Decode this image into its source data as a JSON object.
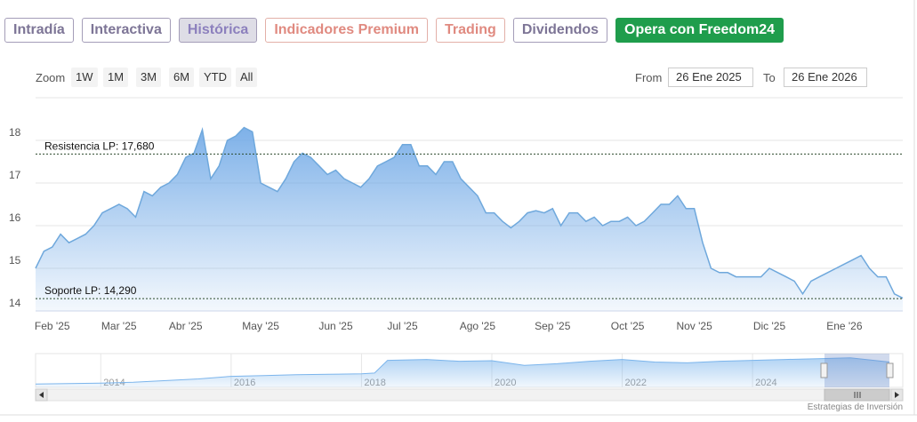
{
  "tabs": [
    "Intradía",
    "Interactiva",
    "Histórica",
    "Indicadores Premium",
    "Trading",
    "Dividendos",
    "Opera con Freedom24"
  ],
  "range_selector": {
    "zoom_label": "Zoom",
    "buttons": [
      "1W",
      "1M",
      "3M",
      "6M",
      "YTD",
      "All"
    ],
    "from_label": "From",
    "from": "26 Ene 2025",
    "to_label": "To",
    "to": "26 Ene 2026"
  },
  "chart_data": {
    "type": "area",
    "categories": [
      null,
      null,
      "Feb '25",
      null,
      null,
      null,
      null,
      null,
      null,
      null,
      "Mar '25",
      null,
      null,
      null,
      null,
      null,
      null,
      null,
      "Abr '25",
      null,
      null,
      null,
      null,
      null,
      null,
      null,
      null,
      "May '25",
      null,
      null,
      null,
      null,
      null,
      null,
      null,
      null,
      "Jun '25",
      null,
      null,
      null,
      null,
      null,
      null,
      null,
      "Jul '25",
      null,
      null,
      null,
      null,
      null,
      null,
      null,
      null,
      "Ago '25",
      null,
      null,
      null,
      null,
      null,
      null,
      null,
      null,
      "Sep '25",
      null,
      null,
      null,
      null,
      null,
      null,
      null,
      null,
      "Oct '25",
      null,
      null,
      null,
      null,
      null,
      null,
      null,
      "Nov '25",
      null,
      null,
      null,
      null,
      null,
      null,
      null,
      null,
      "Dic '25",
      null,
      null,
      null,
      null,
      null,
      null,
      null,
      null,
      "Ene '26",
      null,
      null,
      null,
      null,
      null,
      null,
      null
    ],
    "series": [
      {
        "color": "#6fa8dc",
        "values": [
          15.0,
          15.4,
          15.5,
          15.8,
          15.6,
          15.7,
          15.8,
          16.0,
          16.3,
          16.4,
          16.5,
          16.4,
          16.2,
          16.8,
          16.7,
          16.9,
          17.0,
          17.2,
          17.6,
          17.7,
          18.25,
          17.1,
          17.4,
          18.0,
          18.1,
          18.3,
          18.2,
          17.0,
          16.9,
          16.8,
          17.1,
          17.5,
          17.7,
          17.6,
          17.4,
          17.2,
          17.3,
          17.1,
          17.0,
          16.9,
          17.1,
          17.4,
          17.5,
          17.6,
          17.9,
          17.9,
          17.4,
          17.4,
          17.2,
          17.5,
          17.5,
          17.1,
          16.9,
          16.7,
          16.3,
          16.3,
          16.1,
          15.95,
          16.1,
          16.3,
          16.35,
          16.3,
          16.4,
          16.0,
          16.3,
          16.3,
          16.1,
          16.2,
          16.0,
          16.1,
          16.1,
          16.2,
          16.0,
          16.1,
          16.3,
          16.5,
          16.5,
          16.7,
          16.4,
          16.4,
          15.6,
          15.0,
          14.9,
          14.9,
          14.8,
          14.8,
          14.8,
          14.8,
          15.0,
          14.9,
          14.8,
          14.7,
          14.4,
          14.7,
          14.8,
          14.9,
          15.0,
          15.1,
          15.2,
          15.3,
          15.0,
          14.8,
          14.8,
          14.4,
          14.3
        ]
      }
    ],
    "ylim": [
      14,
      19
    ],
    "yticks": [
      14,
      15,
      16,
      17,
      18
    ],
    "grid": true,
    "annotations": [
      {
        "label": "Resistencia LP: 17,680",
        "value": 17.68
      },
      {
        "label": "Soporte LP: 14,290",
        "value": 14.29
      }
    ]
  },
  "navigator": {
    "type": "area",
    "color": "#7cb5ec",
    "x": [
      2013,
      2013.5,
      2014,
      2014.5,
      2015,
      2015.5,
      2016,
      2016.5,
      2017,
      2017.5,
      2018,
      2018.2,
      2018.4,
      2019,
      2019.5,
      2020,
      2020.5,
      2021,
      2021.5,
      2022,
      2022.5,
      2023,
      2023.5,
      2024,
      2024.5,
      2025,
      2025.5,
      2026.1
    ],
    "values": [
      2,
      2.2,
      2.5,
      3,
      4,
      5,
      6.5,
      7,
      7.5,
      7.8,
      8,
      8.5,
      16,
      16.5,
      15.5,
      15.8,
      13,
      14,
      15.5,
      16.5,
      15,
      14.5,
      15.5,
      16,
      16.5,
      17,
      17.5,
      15
    ],
    "xlim": [
      2013,
      2026.1
    ],
    "ylim": [
      0,
      20
    ],
    "xticks": [
      2014,
      2016,
      2018,
      2020,
      2022,
      2024
    ]
  },
  "credits": "Estrategias de Inversión"
}
